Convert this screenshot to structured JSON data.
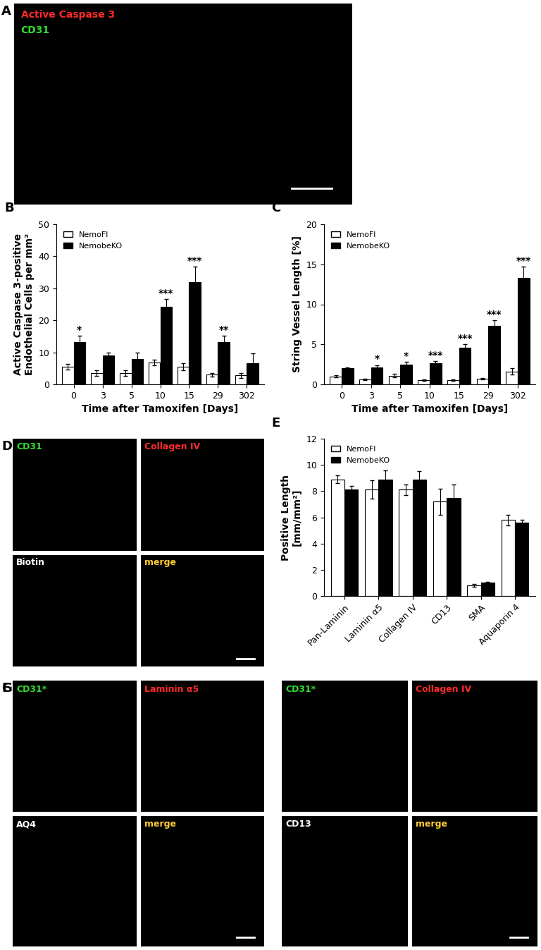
{
  "chart_data": [
    {
      "type": "bar",
      "panel": "B",
      "y_label": "Active Caspase 3-positive\nEndothelial Cells per mm²",
      "x_label": "Time after Tamoxifen [Days]",
      "categories": [
        "0",
        "3",
        "5",
        "10",
        "15",
        "29",
        "302"
      ],
      "series": [
        {
          "name": "NemoFl",
          "color": "#ffffff",
          "values": [
            5.5,
            3.5,
            3.5,
            6.8,
            5.5,
            3.0,
            2.8
          ],
          "errors": [
            0.8,
            0.8,
            0.8,
            0.8,
            1.0,
            0.5,
            0.8
          ]
        },
        {
          "name": "NemobeKO",
          "color": "#000000",
          "values": [
            13.3,
            9.0,
            8.0,
            24.3,
            32.0,
            13.2,
            6.5
          ],
          "errors": [
            1.8,
            1.0,
            2.0,
            2.3,
            4.8,
            2.0,
            3.3
          ]
        }
      ],
      "annotations": [
        {
          "category": "0",
          "series": "NemobeKO",
          "text": "*"
        },
        {
          "category": "10",
          "series": "NemobeKO",
          "text": "***"
        },
        {
          "category": "15",
          "series": "NemobeKO",
          "text": "***"
        },
        {
          "category": "29",
          "series": "NemobeKO",
          "text": "**"
        }
      ],
      "ylim": [
        0,
        50
      ],
      "yticks": [
        0,
        10,
        20,
        30,
        40,
        50
      ],
      "legend": "upper left"
    },
    {
      "type": "bar",
      "panel": "C",
      "y_label": "String Vessel Length [%]",
      "x_label": "Time after Tamoxifen [Days]",
      "categories": [
        "0",
        "3",
        "5",
        "10",
        "15",
        "29",
        "302"
      ],
      "series": [
        {
          "name": "NemoFl",
          "color": "#ffffff",
          "values": [
            1.0,
            0.6,
            1.1,
            0.5,
            0.5,
            0.7,
            1.6
          ],
          "errors": [
            0.15,
            0.1,
            0.2,
            0.1,
            0.1,
            0.1,
            0.4
          ]
        },
        {
          "name": "NemobeKO",
          "color": "#000000",
          "values": [
            2.0,
            2.1,
            2.5,
            2.6,
            4.6,
            7.3,
            13.3
          ],
          "errors": [
            0.15,
            0.3,
            0.3,
            0.3,
            0.4,
            0.7,
            1.4
          ]
        }
      ],
      "annotations": [
        {
          "category": "3",
          "series": "NemobeKO",
          "text": "*"
        },
        {
          "category": "5",
          "series": "NemobeKO",
          "text": "*"
        },
        {
          "category": "10",
          "series": "NemobeKO",
          "text": "***"
        },
        {
          "category": "15",
          "series": "NemobeKO",
          "text": "***"
        },
        {
          "category": "29",
          "series": "NemobeKO",
          "text": "***"
        },
        {
          "category": "302",
          "series": "NemobeKO",
          "text": "***"
        }
      ],
      "ylim": [
        0,
        20
      ],
      "yticks": [
        0,
        5,
        10,
        15,
        20
      ],
      "legend": "upper left"
    },
    {
      "type": "bar",
      "panel": "E",
      "y_label": "Positive Length\n[mm/mm²]",
      "categories": [
        "Pan-Laminin",
        "Laminin α5",
        "Collagen IV",
        "CD13",
        "SMA",
        "Aquaporin 4"
      ],
      "series": [
        {
          "name": "NemoFl",
          "color": "#ffffff",
          "values": [
            8.9,
            8.1,
            8.1,
            7.2,
            0.8,
            5.8
          ],
          "errors": [
            0.3,
            0.7,
            0.4,
            1.0,
            0.1,
            0.4
          ]
        },
        {
          "name": "NemobeKO",
          "color": "#000000",
          "values": [
            8.1,
            8.9,
            8.9,
            7.5,
            1.0,
            5.6
          ],
          "errors": [
            0.3,
            0.7,
            0.6,
            1.0,
            0.1,
            0.2
          ]
        }
      ],
      "ylim": [
        0,
        12
      ],
      "yticks": [
        0,
        2,
        4,
        6,
        8,
        10,
        12
      ],
      "legend": "upper left"
    }
  ],
  "images": [
    {
      "panel": "A",
      "channels": [
        {
          "label": "Active Caspase 3",
          "color": "#ff2a2a"
        },
        {
          "label": "CD31",
          "color": "#33dd33"
        }
      ]
    },
    {
      "panel": "D",
      "quadrants": [
        {
          "label": "CD31",
          "color": "#33dd33"
        },
        {
          "label": "Collagen IV",
          "color": "#ff2a2a"
        },
        {
          "label": "Biotin",
          "color": "#ffffff"
        },
        {
          "label": "merge",
          "color": "#ffcc33"
        }
      ]
    },
    {
      "panel": "F",
      "quadrants": [
        {
          "label": "CD31*",
          "color": "#33dd33"
        },
        {
          "label": "Laminin α5",
          "color": "#ff2a2a"
        },
        {
          "label": "AQ4",
          "color": "#ffffff"
        },
        {
          "label": "merge",
          "color": "#ffcc33"
        }
      ]
    },
    {
      "panel": "G",
      "quadrants": [
        {
          "label": "CD31*",
          "color": "#33dd33"
        },
        {
          "label": "Collagen IV",
          "color": "#ff2a2a"
        },
        {
          "label": "CD13",
          "color": "#ffffff"
        },
        {
          "label": "merge",
          "color": "#ffcc33"
        }
      ]
    }
  ]
}
